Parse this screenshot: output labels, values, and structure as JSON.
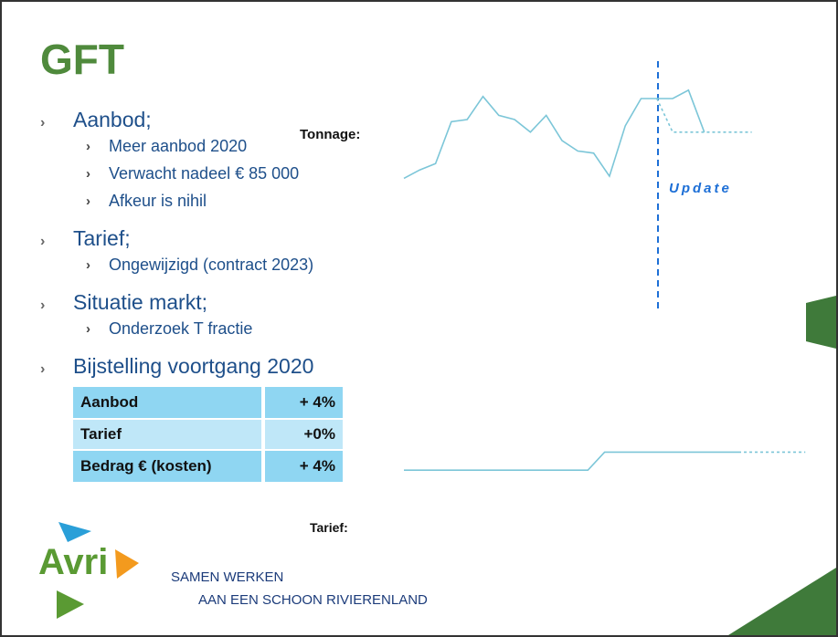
{
  "title": "GFT",
  "bullets": [
    {
      "text": "Aanbod;",
      "sub": [
        "Meer aanbod 2020",
        "Verwacht nadeel € 85 000",
        "Afkeur is nihil"
      ]
    },
    {
      "text": "Tarief;",
      "sub": [
        "Ongewijzigd (contract 2023)"
      ]
    },
    {
      "text": "Situatie markt;",
      "sub": [
        "Onderzoek T fractie"
      ]
    },
    {
      "text": "Bijstelling voortgang 2020",
      "sub": []
    }
  ],
  "table": {
    "rows": [
      [
        "Aanbod",
        "+ 4%"
      ],
      [
        "Tarief",
        "+0%"
      ],
      [
        "Bedrag € (kosten)",
        "+ 4%"
      ]
    ]
  },
  "labels": {
    "tonnage": "Tonnage:",
    "tarief": "Tarief:",
    "update": "Update"
  },
  "charts": [
    {
      "type": "line",
      "ylim": [
        0,
        100
      ],
      "series": [
        {
          "color": "#7cc6d8",
          "values": [
            42,
            46,
            49,
            69,
            70,
            81,
            72,
            70,
            64,
            72,
            60,
            55,
            54,
            43,
            67,
            80,
            80,
            80,
            84,
            64,
            null,
            null,
            null
          ]
        },
        {
          "color": "#7cc6d8",
          "dashed": true,
          "values": [
            null,
            null,
            null,
            null,
            null,
            null,
            null,
            null,
            null,
            null,
            null,
            null,
            null,
            null,
            null,
            null,
            80,
            64,
            64,
            64,
            64,
            64,
            64
          ]
        }
      ]
    },
    {
      "type": "line",
      "ylim": [
        0,
        100
      ],
      "series": [
        {
          "color": "#7cc6d8",
          "values": [
            44,
            44,
            44,
            44,
            44,
            44,
            44,
            44,
            44,
            44,
            44,
            44,
            53,
            53,
            53,
            53,
            53,
            53,
            53,
            53,
            53,
            null,
            null,
            null,
            null
          ]
        },
        {
          "color": "#7cc6d8",
          "dashed": true,
          "values": [
            null,
            null,
            null,
            null,
            null,
            null,
            null,
            null,
            null,
            null,
            null,
            null,
            null,
            null,
            null,
            null,
            null,
            null,
            null,
            null,
            53,
            53,
            53,
            53,
            53
          ]
        }
      ]
    }
  ],
  "logo": "Avri",
  "tagline": [
    "SAMEN WERKEN",
    "AAN EEN SCHOON RIVIERENLAND"
  ]
}
